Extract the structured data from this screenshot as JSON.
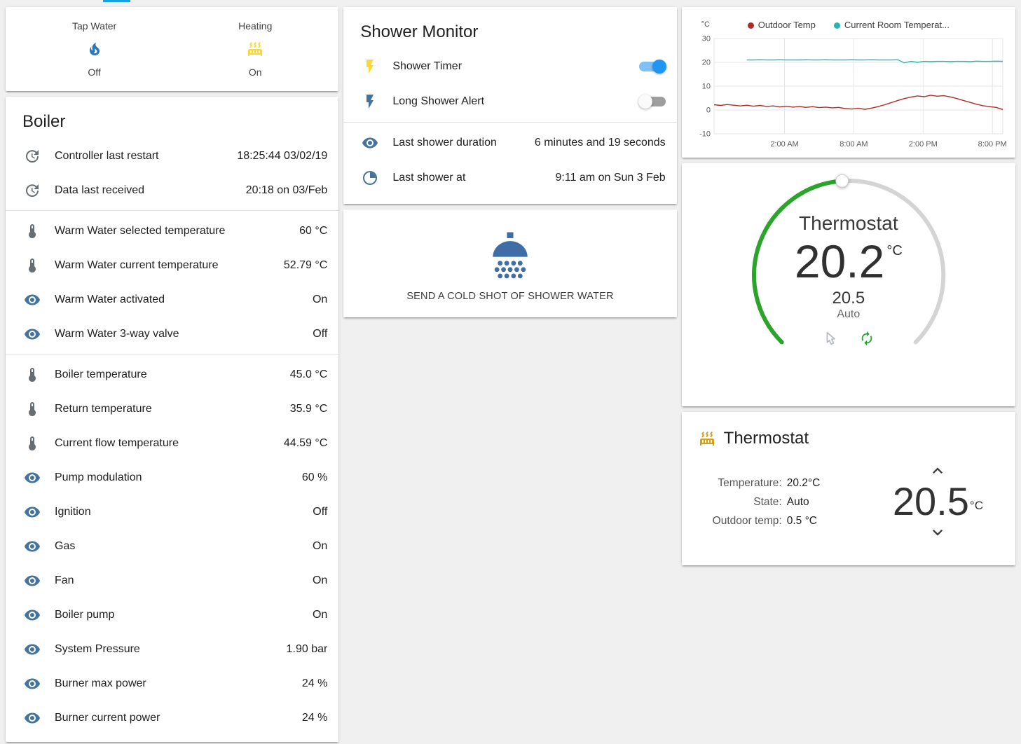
{
  "page": {
    "accent": "#18a0e4"
  },
  "glance": {
    "items": [
      {
        "label": "Tap Water",
        "state": "Off",
        "icon": "fire-icon"
      },
      {
        "label": "Heating",
        "state": "On",
        "icon": "radiator-icon"
      }
    ]
  },
  "boiler": {
    "title": "Boiler",
    "rows": [
      {
        "icon": "history",
        "label": "Controller last restart",
        "value": "18:25:44 03/02/19"
      },
      {
        "icon": "history",
        "label": "Data last received",
        "value": "20:18 on 03/Feb"
      },
      {
        "icon": "thermometer",
        "label": "Warm Water selected temperature",
        "value": "60 °C"
      },
      {
        "icon": "thermometer",
        "label": "Warm Water current temperature",
        "value": "52.79 °C"
      },
      {
        "icon": "eye",
        "label": "Warm Water activated",
        "value": "On"
      },
      {
        "icon": "eye",
        "label": "Warm Water 3-way valve",
        "value": "Off"
      },
      {
        "icon": "thermometer",
        "label": "Boiler temperature",
        "value": "45.0 °C"
      },
      {
        "icon": "thermometer",
        "label": "Return temperature",
        "value": "35.9 °C"
      },
      {
        "icon": "thermometer",
        "label": "Current flow temperature",
        "value": "44.59 °C"
      },
      {
        "icon": "eye",
        "label": "Pump modulation",
        "value": "60 %"
      },
      {
        "icon": "eye",
        "label": "Ignition",
        "value": "Off"
      },
      {
        "icon": "eye",
        "label": "Gas",
        "value": "On"
      },
      {
        "icon": "eye",
        "label": "Fan",
        "value": "On"
      },
      {
        "icon": "eye",
        "label": "Boiler pump",
        "value": "On"
      },
      {
        "icon": "eye",
        "label": "System Pressure",
        "value": "1.90 bar"
      },
      {
        "icon": "eye",
        "label": "Burner max power",
        "value": "24 %"
      },
      {
        "icon": "eye",
        "label": "Burner current power",
        "value": "24 %"
      }
    ]
  },
  "shower_monitor": {
    "title": "Shower Monitor",
    "toggles": [
      {
        "label": "Shower Timer",
        "on": true,
        "icon": "flash-icon"
      },
      {
        "label": "Long Shower Alert",
        "on": false,
        "icon": "flash-icon"
      }
    ],
    "info_rows": [
      {
        "icon": "eye",
        "label": "Last shower duration",
        "value": "6 minutes and 19 seconds"
      },
      {
        "icon": "clock",
        "label": "Last shower at",
        "value": "9:11 am on Sun 3 Feb"
      }
    ]
  },
  "shower_action": {
    "icon": "shower-head-icon",
    "button_label": "SEND A COLD SHOT OF SHOWER WATER"
  },
  "chart_data": {
    "type": "line",
    "title": "",
    "ylabel": "°C",
    "ylim": [
      -10,
      30
    ],
    "yticks": [
      30,
      20,
      10,
      0,
      -10
    ],
    "x_domain_hours": 25,
    "xticks": [
      "2:00 AM",
      "8:00 AM",
      "2:00 PM",
      "8:00 PM"
    ],
    "xtick_hours": [
      6.1,
      12.1,
      18.1,
      24.1
    ],
    "grid": true,
    "legend_position": "top",
    "series": [
      {
        "name": "Outdoor Temp",
        "color": "#b02c25",
        "values": [
          2.2,
          1.9,
          2.3,
          2.0,
          1.7,
          2.0,
          1.6,
          1.9,
          1.5,
          1.7,
          1.3,
          1.6,
          1.2,
          1.5,
          1.1,
          1.4,
          1.0,
          1.2,
          0.9,
          1.1,
          0.6,
          0.4,
          0.7,
          0.3,
          0.8,
          1.4,
          2.2,
          3.1,
          4.0,
          4.8,
          5.4,
          5.9,
          5.6,
          6.2,
          5.8,
          6.0,
          5.5,
          4.8,
          4.0,
          3.2,
          2.4,
          1.8,
          1.4,
          1.1,
          0.2
        ]
      },
      {
        "name": "Current Room Temperat...",
        "color": "#27b5af",
        "values": [
          null,
          null,
          null,
          null,
          null,
          21.0,
          21.0,
          21.1,
          21.0,
          21.0,
          21.1,
          21.0,
          21.0,
          21.0,
          21.1,
          21.0,
          21.0,
          21.1,
          21.0,
          21.0,
          21.0,
          21.1,
          21.0,
          21.0,
          21.1,
          21.0,
          21.0,
          21.0,
          21.1,
          19.8,
          20.4,
          20.0,
          20.4,
          20.3,
          20.4,
          20.4,
          20.3,
          20.4,
          20.4,
          20.3,
          20.5,
          20.4,
          20.4,
          20.5,
          20.4
        ]
      }
    ]
  },
  "dial": {
    "title": "Thermostat",
    "current": "20.2",
    "unit": "°C",
    "target": "20.5",
    "mode": "Auto",
    "arc_color": "#2aa52a"
  },
  "thermostat_card": {
    "title": "Thermostat",
    "icon": "radiator-icon",
    "rows": [
      {
        "label": "Temperature:",
        "value": "20.2°C"
      },
      {
        "label": "State:",
        "value": "Auto"
      },
      {
        "label": "Outdoor temp:",
        "value": "0.5 °C"
      }
    ],
    "target": "20.5",
    "unit": "°C"
  }
}
